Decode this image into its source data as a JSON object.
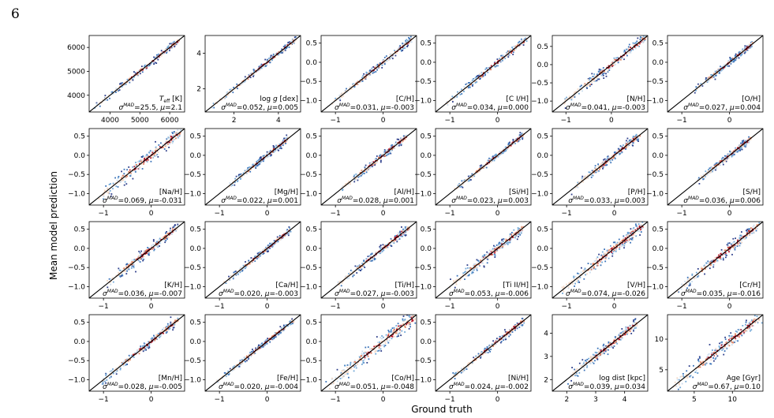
{
  "page_number": "6",
  "figure": {
    "ylabel": "Mean model prediction",
    "xlabel": "Ground truth"
  },
  "chart_data": {
    "type": "scatter",
    "colormap": [
      "#2d3e8a",
      "#3a72b8",
      "#6fa6d6",
      "#c9ddee",
      "#f3d8c6",
      "#e0805f",
      "#b2182b"
    ],
    "identity_line_color": "#000000",
    "panels": [
      {
        "label": "T_eff [K]",
        "sigma": "25.5",
        "mu": "2.1",
        "xlim": [
          3300,
          6500
        ],
        "ylim": [
          3300,
          6500
        ],
        "xticks": [
          4000,
          5000,
          6000
        ],
        "yticks": [
          4000,
          5000,
          6000
        ],
        "xtick_labels": [
          "4000",
          "5000",
          "6000"
        ],
        "ytick_labels": [
          "4000",
          "5000",
          "6000"
        ],
        "data_range": [
          3500,
          6300
        ],
        "spread": 0.05
      },
      {
        "label": "log g [dex]",
        "sigma": "0.052",
        "mu": "0.005",
        "xlim": [
          0.7,
          5.0
        ],
        "ylim": [
          0.7,
          5.0
        ],
        "xticks": [
          2,
          4
        ],
        "yticks": [
          2,
          4
        ],
        "xtick_labels": [
          "2",
          "4"
        ],
        "ytick_labels": [
          "2",
          "4"
        ],
        "data_range": [
          1.0,
          4.8
        ],
        "spread": 0.05
      },
      {
        "label": "[C/H]",
        "sigma": "0.031",
        "mu": "-0.003",
        "xlim": [
          -1.3,
          0.7
        ],
        "ylim": [
          -1.3,
          0.7
        ],
        "xticks": [
          -1,
          0
        ],
        "yticks": [
          -1.0,
          -0.5,
          0.0,
          0.5
        ],
        "xtick_labels": [
          "−1",
          "0"
        ],
        "ytick_labels": [
          "−1.0",
          "−0.5",
          "0.0",
          "0.5"
        ],
        "data_range": [
          -1.1,
          0.6
        ],
        "spread": 0.06
      },
      {
        "label": "[C I/H]",
        "sigma": "0.034",
        "mu": "0.000",
        "xlim": [
          -1.3,
          0.7
        ],
        "ylim": [
          -1.3,
          0.7
        ],
        "xticks": [
          -1,
          0
        ],
        "yticks": [
          -1.0,
          -0.5,
          0.0,
          0.5
        ],
        "xtick_labels": [
          "−1",
          "0"
        ],
        "ytick_labels": [
          "−1.0",
          "−0.5",
          "0.0",
          "0.5"
        ],
        "data_range": [
          -1.1,
          0.6
        ],
        "spread": 0.06
      },
      {
        "label": "[N/H]",
        "sigma": "0.041",
        "mu": "-0.003",
        "xlim": [
          -1.3,
          0.8
        ],
        "ylim": [
          -1.3,
          0.8
        ],
        "xticks": [
          -1,
          0
        ],
        "yticks": [
          -1.0,
          -0.5,
          0.0,
          0.5
        ],
        "xtick_labels": [
          "−1",
          "0"
        ],
        "ytick_labels": [
          "−1.0",
          "−0.5",
          "0.0",
          "0.5"
        ],
        "data_range": [
          -1.1,
          0.75
        ],
        "spread": 0.08
      },
      {
        "label": "[O/H]",
        "sigma": "0.027",
        "mu": "0.004",
        "xlim": [
          -1.3,
          0.7
        ],
        "ylim": [
          -1.3,
          0.7
        ],
        "xticks": [
          -1,
          0
        ],
        "yticks": [
          -1.0,
          -0.5,
          0.0,
          0.5
        ],
        "xtick_labels": [
          "−1",
          "0"
        ],
        "ytick_labels": [
          "−1.0",
          "−0.5",
          "0.0",
          "0.5"
        ],
        "data_range": [
          -0.8,
          0.5
        ],
        "spread": 0.05
      },
      {
        "label": "[Na/H]",
        "sigma": "0.069",
        "mu": "-0.031",
        "xlim": [
          -1.3,
          0.7
        ],
        "ylim": [
          -1.3,
          0.7
        ],
        "xticks": [
          -1,
          0
        ],
        "yticks": [
          -1.0,
          -0.5,
          0.0,
          0.5
        ],
        "xtick_labels": [
          "−1",
          "0"
        ],
        "ytick_labels": [
          "−1.0",
          "−0.5",
          "0.0",
          "0.5"
        ],
        "data_range": [
          -1.1,
          0.6
        ],
        "spread": 0.11
      },
      {
        "label": "[Mg/H]",
        "sigma": "0.022",
        "mu": "0.001",
        "xlim": [
          -1.3,
          0.7
        ],
        "ylim": [
          -1.3,
          0.7
        ],
        "xticks": [
          -1,
          0
        ],
        "yticks": [
          -1.0,
          -0.5,
          0.0,
          0.5
        ],
        "xtick_labels": [
          "−1",
          "0"
        ],
        "ytick_labels": [
          "−1.0",
          "−0.5",
          "0.0",
          "0.5"
        ],
        "data_range": [
          -0.8,
          0.45
        ],
        "spread": 0.05
      },
      {
        "label": "[Al/H]",
        "sigma": "0.028",
        "mu": "0.001",
        "xlim": [
          -1.3,
          0.7
        ],
        "ylim": [
          -1.3,
          0.7
        ],
        "xticks": [
          -1,
          0
        ],
        "yticks": [
          -1.0,
          -0.5,
          0.0,
          0.5
        ],
        "xtick_labels": [
          "−1",
          "0"
        ],
        "ytick_labels": [
          "−1.0",
          "−0.5",
          "0.0",
          "0.5"
        ],
        "data_range": [
          -0.9,
          0.5
        ],
        "spread": 0.06
      },
      {
        "label": "[Si/H]",
        "sigma": "0.023",
        "mu": "0.003",
        "xlim": [
          -1.3,
          0.7
        ],
        "ylim": [
          -1.3,
          0.7
        ],
        "xticks": [
          -1,
          0
        ],
        "yticks": [
          -1.0,
          -0.5,
          0.0,
          0.5
        ],
        "xtick_labels": [
          "−1",
          "0"
        ],
        "ytick_labels": [
          "−1.0",
          "−0.5",
          "0.0",
          "0.5"
        ],
        "data_range": [
          -0.9,
          0.55
        ],
        "spread": 0.05
      },
      {
        "label": "[P/H]",
        "sigma": "0.033",
        "mu": "0.003",
        "xlim": [
          -1.3,
          0.7
        ],
        "ylim": [
          -1.3,
          0.7
        ],
        "xticks": [
          -1,
          0
        ],
        "yticks": [
          -1.0,
          -0.5,
          0.0,
          0.5
        ],
        "xtick_labels": [
          "−1",
          "0"
        ],
        "ytick_labels": [
          "−1.0",
          "−0.5",
          "0.0",
          "0.5"
        ],
        "data_range": [
          -0.9,
          0.5
        ],
        "spread": 0.07
      },
      {
        "label": "[S/H]",
        "sigma": "0.036",
        "mu": "0.006",
        "xlim": [
          -1.3,
          0.7
        ],
        "ylim": [
          -1.3,
          0.7
        ],
        "xticks": [
          -1,
          0
        ],
        "yticks": [
          -1.0,
          -0.5,
          0.0,
          0.5
        ],
        "xtick_labels": [
          "−1",
          "0"
        ],
        "ytick_labels": [
          "−1.0",
          "−0.5",
          "0.0",
          "0.5"
        ],
        "data_range": [
          -0.7,
          0.45
        ],
        "spread": 0.06
      },
      {
        "label": "[K/H]",
        "sigma": "0.036",
        "mu": "-0.007",
        "xlim": [
          -1.3,
          0.7
        ],
        "ylim": [
          -1.3,
          0.7
        ],
        "xticks": [
          -1,
          0
        ],
        "yticks": [
          -1.0,
          -0.5,
          0.0,
          0.5
        ],
        "xtick_labels": [
          "−1",
          "0"
        ],
        "ytick_labels": [
          "−1.0",
          "−0.5",
          "0.0",
          "0.5"
        ],
        "data_range": [
          -1.0,
          0.55
        ],
        "spread": 0.08
      },
      {
        "label": "[Ca/H]",
        "sigma": "0.020",
        "mu": "-0.003",
        "xlim": [
          -1.3,
          0.7
        ],
        "ylim": [
          -1.3,
          0.7
        ],
        "xticks": [
          -1,
          0
        ],
        "yticks": [
          -1.0,
          -0.5,
          0.0,
          0.5
        ],
        "xtick_labels": [
          "−1",
          "0"
        ],
        "ytick_labels": [
          "−1.0",
          "−0.5",
          "0.0",
          "0.5"
        ],
        "data_range": [
          -0.9,
          0.5
        ],
        "spread": 0.05
      },
      {
        "label": "[Ti/H]",
        "sigma": "0.027",
        "mu": "-0.003",
        "xlim": [
          -1.3,
          0.7
        ],
        "ylim": [
          -1.3,
          0.7
        ],
        "xticks": [
          -1,
          0
        ],
        "yticks": [
          -1.0,
          -0.5,
          0.0,
          0.5
        ],
        "xtick_labels": [
          "−1",
          "0"
        ],
        "ytick_labels": [
          "−1.0",
          "−0.5",
          "0.0",
          "0.5"
        ],
        "data_range": [
          -1.0,
          0.55
        ],
        "spread": 0.07
      },
      {
        "label": "[Ti II/H]",
        "sigma": "0.053",
        "mu": "-0.006",
        "xlim": [
          -1.3,
          0.7
        ],
        "ylim": [
          -1.3,
          0.7
        ],
        "xticks": [
          -1,
          0
        ],
        "yticks": [
          -1.0,
          -0.5,
          0.0,
          0.5
        ],
        "xtick_labels": [
          "−1",
          "0"
        ],
        "ytick_labels": [
          "−1.0",
          "−0.5",
          "0.0",
          "0.5"
        ],
        "data_range": [
          -1.0,
          0.55
        ],
        "spread": 0.09
      },
      {
        "label": "[V/H]",
        "sigma": "0.074",
        "mu": "-0.026",
        "xlim": [
          -1.3,
          0.7
        ],
        "ylim": [
          -1.3,
          0.7
        ],
        "xticks": [
          -1,
          0
        ],
        "yticks": [
          -1.0,
          -0.5,
          0.0,
          0.5
        ],
        "xtick_labels": [
          "−1",
          "0"
        ],
        "ytick_labels": [
          "−1.0",
          "−0.5",
          "0.0",
          "0.5"
        ],
        "data_range": [
          -1.1,
          0.6
        ],
        "spread": 0.11
      },
      {
        "label": "[Cr/H]",
        "sigma": "0.035",
        "mu": "-0.016",
        "xlim": [
          -1.3,
          0.7
        ],
        "ylim": [
          -1.3,
          0.7
        ],
        "xticks": [
          -1,
          0
        ],
        "yticks": [
          -1.0,
          -0.5,
          0.0,
          0.5
        ],
        "xtick_labels": [
          "−1",
          "0"
        ],
        "ytick_labels": [
          "−1.0",
          "−0.5",
          "0.0",
          "0.5"
        ],
        "data_range": [
          -1.1,
          0.6
        ],
        "spread": 0.09
      },
      {
        "label": "[Mn/H]",
        "sigma": "0.028",
        "mu": "-0.005",
        "xlim": [
          -1.3,
          0.7
        ],
        "ylim": [
          -1.3,
          0.7
        ],
        "xticks": [
          -1,
          0
        ],
        "yticks": [
          -1.0,
          -0.5,
          0.0,
          0.5
        ],
        "xtick_labels": [
          "−1",
          "0"
        ],
        "ytick_labels": [
          "−1.0",
          "−0.5",
          "0.0",
          "0.5"
        ],
        "data_range": [
          -1.1,
          0.55
        ],
        "spread": 0.07
      },
      {
        "label": "[Fe/H]",
        "sigma": "0.020",
        "mu": "-0.004",
        "xlim": [
          -1.3,
          0.7
        ],
        "ylim": [
          -1.3,
          0.7
        ],
        "xticks": [
          -1,
          0
        ],
        "yticks": [
          -1.0,
          -0.5,
          0.0,
          0.5
        ],
        "xtick_labels": [
          "−1",
          "0"
        ],
        "ytick_labels": [
          "−1.0",
          "−0.5",
          "0.0",
          "0.5"
        ],
        "data_range": [
          -1.1,
          0.55
        ],
        "spread": 0.05
      },
      {
        "label": "[Co/H]",
        "sigma": "0.051",
        "mu": "-0.048",
        "xlim": [
          -1.3,
          0.7
        ],
        "ylim": [
          -1.3,
          0.7
        ],
        "xticks": [
          -1,
          0
        ],
        "yticks": [
          -1.0,
          -0.5,
          0.0,
          0.5
        ],
        "xtick_labels": [
          "−1",
          "0"
        ],
        "ytick_labels": [
          "−1.0",
          "−0.5",
          "0.0",
          "0.5"
        ],
        "data_range": [
          -1.2,
          0.65
        ],
        "spread": 0.13
      },
      {
        "label": "[Ni/H]",
        "sigma": "0.024",
        "mu": "-0.002",
        "xlim": [
          -1.3,
          0.7
        ],
        "ylim": [
          -1.3,
          0.7
        ],
        "xticks": [
          -1,
          0
        ],
        "yticks": [
          -1.0,
          -0.5,
          0.0,
          0.5
        ],
        "xtick_labels": [
          "−1",
          "0"
        ],
        "ytick_labels": [
          "−1.0",
          "−0.5",
          "0.0",
          "0.5"
        ],
        "data_range": [
          -1.0,
          0.55
        ],
        "spread": 0.06
      },
      {
        "label": "log dist [kpc]",
        "sigma": "0.039",
        "mu": "0.034",
        "xlim": [
          1.5,
          4.8
        ],
        "ylim": [
          1.5,
          4.8
        ],
        "xticks": [
          2,
          3,
          4
        ],
        "yticks": [
          2,
          3,
          4
        ],
        "xtick_labels": [
          "2",
          "3",
          "4"
        ],
        "ytick_labels": [
          "2",
          "3",
          "4"
        ],
        "data_range": [
          2.0,
          4.4
        ],
        "spread": 0.09
      },
      {
        "label": "Age [Gyr]",
        "sigma": "0.67",
        "mu": "0.10",
        "xlim": [
          1.5,
          14.0
        ],
        "ylim": [
          1.5,
          14.0
        ],
        "xticks": [
          5,
          10
        ],
        "yticks": [
          5,
          10
        ],
        "xtick_labels": [
          "5",
          "10"
        ],
        "ytick_labels": [
          "5",
          "10"
        ],
        "data_range": [
          2.0,
          13.5
        ],
        "spread": 0.12
      }
    ]
  }
}
